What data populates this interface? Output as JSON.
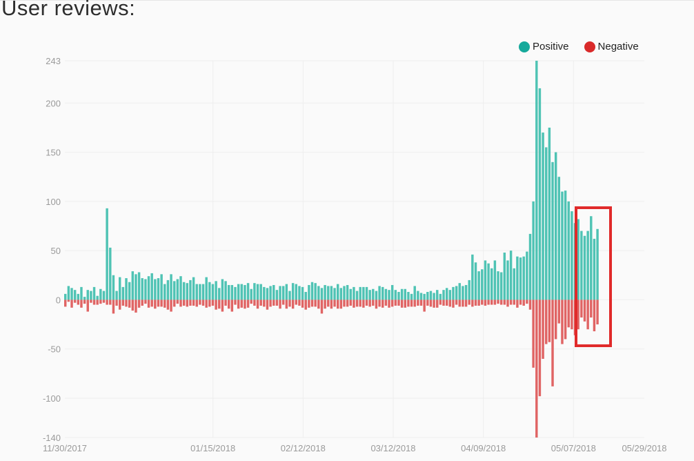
{
  "title": "User reviews:",
  "colors": {
    "positive": "#4fc3b4",
    "negative": "#e06464",
    "positive_legend": "#16a99b",
    "negative_legend": "#d92a2a",
    "highlight_box": "#e02a2a",
    "grid": "#eeeeee",
    "tick_text": "#9a9a9a"
  },
  "chart_data": {
    "type": "bar",
    "title": "User reviews:",
    "stacked": true,
    "grid": true,
    "legend_position": "top-right",
    "ylim": [
      -140,
      243
    ],
    "y_ticks": [
      243,
      200,
      150,
      100,
      50,
      0,
      -50,
      -100,
      -140
    ],
    "x_range": [
      "2017-11-30",
      "2018-05-29"
    ],
    "x_ticks": [
      {
        "date": "2017-11-30",
        "label": "11/30/2017"
      },
      {
        "date": "2018-01-15",
        "label": "01/15/2018"
      },
      {
        "date": "2018-02-12",
        "label": "02/12/2018"
      },
      {
        "date": "2018-03-12",
        "label": "03/12/2018"
      },
      {
        "date": "2018-04-09",
        "label": "04/09/2018"
      },
      {
        "date": "2018-05-07",
        "label": "05/07/2018"
      },
      {
        "date": "2018-05-29",
        "label": "05/29/2018"
      }
    ],
    "series": [
      {
        "name": "Positive",
        "color": "#4fc3b4",
        "values": [
          6,
          14,
          12,
          10,
          6,
          13,
          3,
          10,
          9,
          13,
          4,
          11,
          9,
          93,
          53,
          25,
          9,
          23,
          13,
          22,
          18,
          29,
          26,
          28,
          22,
          21,
          24,
          27,
          21,
          22,
          26,
          16,
          20,
          26,
          19,
          21,
          24,
          18,
          17,
          20,
          23,
          16,
          16,
          16,
          23,
          18,
          16,
          19,
          12,
          21,
          19,
          15,
          15,
          13,
          16,
          16,
          15,
          17,
          11,
          17,
          16,
          16,
          13,
          12,
          14,
          15,
          10,
          14,
          14,
          16,
          9,
          17,
          16,
          14,
          13,
          8,
          15,
          18,
          17,
          14,
          12,
          15,
          14,
          14,
          12,
          16,
          12,
          14,
          15,
          11,
          13,
          9,
          13,
          13,
          13,
          10,
          11,
          9,
          14,
          13,
          11,
          10,
          15,
          10,
          8,
          11,
          11,
          8,
          6,
          14,
          9,
          7,
          6,
          8,
          9,
          7,
          10,
          6,
          10,
          12,
          10,
          13,
          14,
          17,
          14,
          15,
          20,
          46,
          38,
          29,
          31,
          40,
          37,
          32,
          40,
          29,
          28,
          48,
          40,
          50,
          32,
          44,
          43,
          44,
          49,
          67,
          100,
          243,
          215,
          170,
          155,
          175,
          140,
          150,
          125,
          110,
          111,
          100,
          90,
          78,
          82,
          70,
          65,
          70,
          85,
          62,
          72
        ],
        "negative": []
      },
      {
        "name": "Negative",
        "color": "#e06464",
        "values": [
          -7,
          -2,
          -8,
          -3,
          -5,
          -8,
          -4,
          -12,
          -3,
          -5,
          -5,
          -4,
          -3,
          -5,
          -5,
          -14,
          -6,
          -10,
          -6,
          -7,
          -8,
          -11,
          -13,
          -8,
          -6,
          -4,
          -8,
          -7,
          -9,
          -7,
          -7,
          -8,
          -10,
          -12,
          -7,
          -4,
          -7,
          -6,
          -7,
          -6,
          -6,
          -7,
          -5,
          -6,
          -8,
          -7,
          -6,
          -10,
          -9,
          -12,
          -6,
          -9,
          -12,
          -5,
          -9,
          -8,
          -9,
          -8,
          -4,
          -6,
          -9,
          -6,
          -7,
          -10,
          -7,
          -6,
          -6,
          -9,
          -5,
          -9,
          -7,
          -9,
          -5,
          -6,
          -8,
          -10,
          -8,
          -7,
          -7,
          -9,
          -14,
          -9,
          -7,
          -9,
          -7,
          -9,
          -9,
          -7,
          -7,
          -6,
          -8,
          -7,
          -7,
          -8,
          -6,
          -7,
          -6,
          -9,
          -7,
          -8,
          -6,
          -8,
          -7,
          -6,
          -6,
          -8,
          -8,
          -7,
          -7,
          -7,
          -6,
          -6,
          -12,
          -6,
          -7,
          -8,
          -8,
          -5,
          -6,
          -6,
          -7,
          -8,
          -5,
          -7,
          -7,
          -7,
          -5,
          -7,
          -6,
          -6,
          -5,
          -6,
          -5,
          -5,
          -5,
          -4,
          -5,
          -5,
          -7,
          -5,
          -5,
          -8,
          -5,
          -6,
          -4,
          -10,
          -69,
          -140,
          -98,
          -60,
          -45,
          -43,
          -88,
          -40,
          -24,
          -45,
          -40,
          -28,
          -30,
          -36,
          -30,
          -18,
          -22,
          -30,
          -18,
          -32,
          -25
        ]
      }
    ]
  }
}
